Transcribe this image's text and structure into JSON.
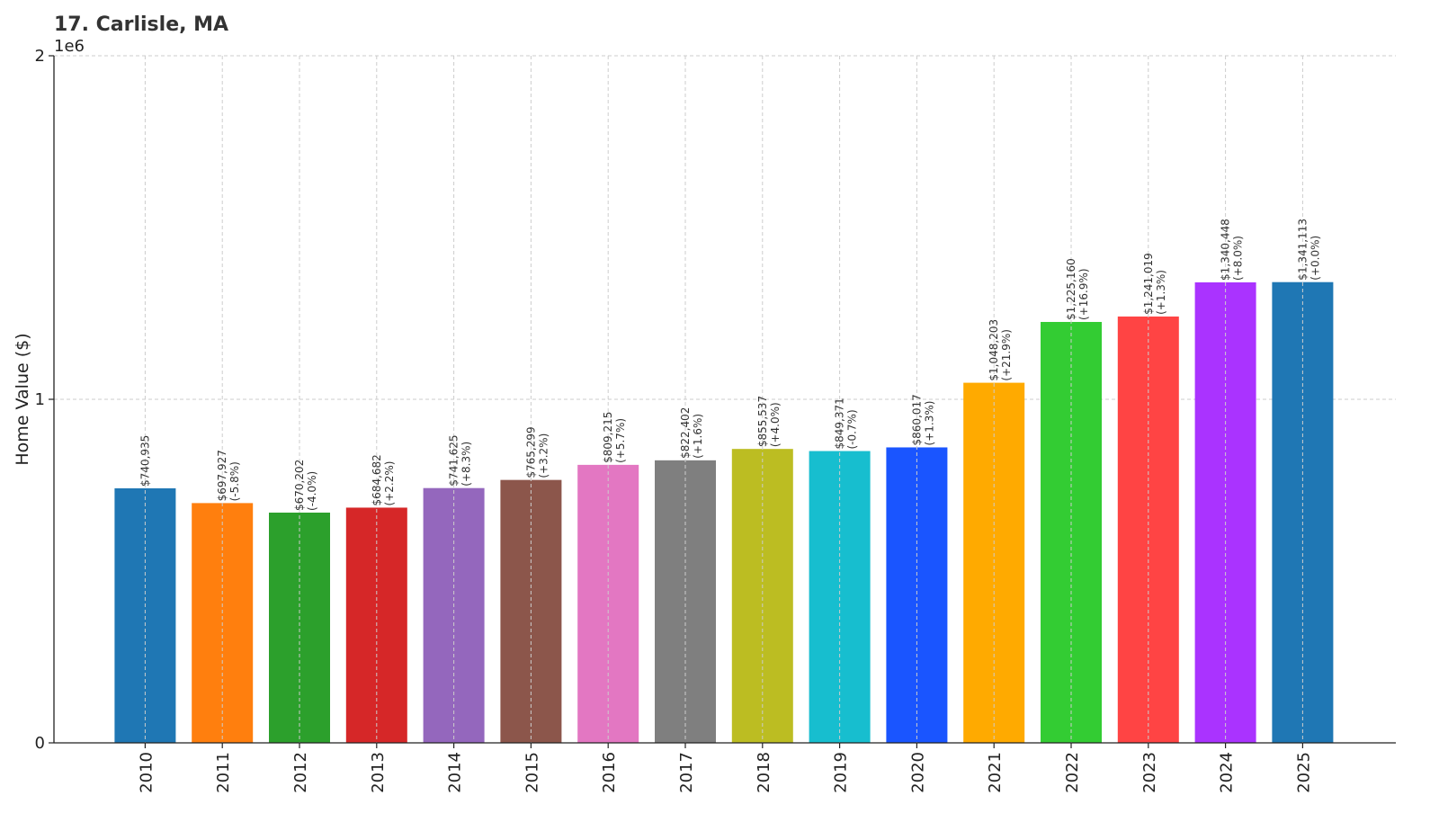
{
  "chart_data": {
    "type": "bar",
    "title": "17. Carlisle, MA",
    "xlabel": "",
    "ylabel": "Home Value ($)",
    "y_offset_text": "1e6",
    "ylim": [
      0,
      2000000
    ],
    "yticks": [
      0,
      1000000,
      2000000
    ],
    "ytick_labels": [
      "0",
      "1",
      "2"
    ],
    "grid": true,
    "categories": [
      "2010",
      "2011",
      "2012",
      "2013",
      "2014",
      "2015",
      "2016",
      "2017",
      "2018",
      "2019",
      "2020",
      "2021",
      "2022",
      "2023",
      "2024",
      "2025"
    ],
    "values": [
      740935,
      697927,
      670202,
      684682,
      741625,
      765299,
      809215,
      822402,
      855537,
      849371,
      860017,
      1048203,
      1225160,
      1241019,
      1340448,
      1341113
    ],
    "value_labels": [
      "$740,935",
      "$697,927",
      "$670,202",
      "$684,682",
      "$741,625",
      "$765,299",
      "$809,215",
      "$822,402",
      "$855,537",
      "$849,371",
      "$860,017",
      "$1,048,203",
      "$1,225,160",
      "$1,241,019",
      "$1,340,448",
      "$1,341,113"
    ],
    "change_labels": [
      "",
      "(-5.8%)",
      "(-4.0%)",
      "(+2.2%)",
      "(+8.3%)",
      "(+3.2%)",
      "(+5.7%)",
      "(+1.6%)",
      "(+4.0%)",
      "(-0.7%)",
      "(+1.3%)",
      "(+21.9%)",
      "(+16.9%)",
      "(+1.3%)",
      "(+8.0%)",
      "(+0.0%)"
    ],
    "colors": [
      "#1f77b4",
      "#ff7f0e",
      "#2ca02c",
      "#d62728",
      "#9467bd",
      "#8c564b",
      "#e377c2",
      "#7f7f7f",
      "#bcbd22",
      "#17becf",
      "#1a55ff",
      "#ffaa00",
      "#33cc33",
      "#ff4444",
      "#aa33ff",
      "#1f77b4"
    ]
  }
}
